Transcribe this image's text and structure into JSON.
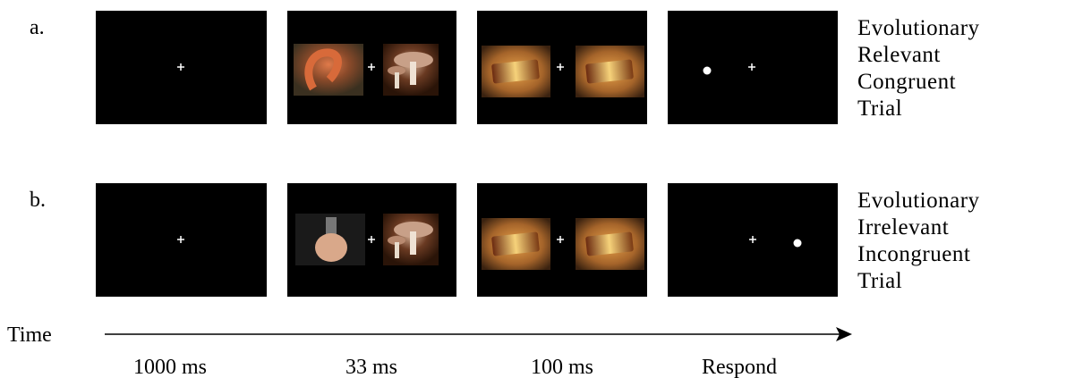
{
  "rows": [
    {
      "label": "a.",
      "caption": [
        "Evolutionary",
        "Relevant",
        "Congruent",
        "Trial"
      ]
    },
    {
      "label": "b.",
      "caption": [
        "Evolutionary",
        "Irrelevant",
        "Incongruent",
        "Trial"
      ]
    }
  ],
  "timeline": {
    "label": "Time",
    "durations": [
      "1000 ms",
      "33 ms",
      "100 ms",
      "Respond"
    ]
  }
}
